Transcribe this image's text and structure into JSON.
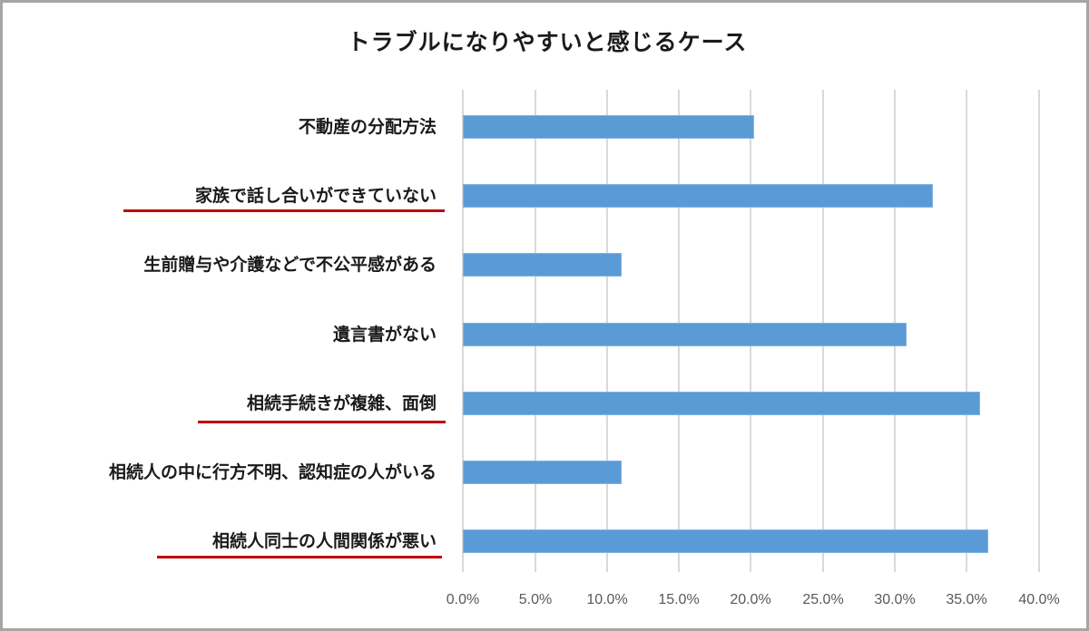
{
  "chart_data": {
    "type": "bar",
    "orientation": "horizontal",
    "title": "トラブルになりやすいと感じるケース",
    "xlabel": "",
    "ylabel": "",
    "xlim": [
      0,
      40
    ],
    "x_ticks": [
      "0.0%",
      "5.0%",
      "10.0%",
      "15.0%",
      "20.0%",
      "25.0%",
      "30.0%",
      "35.0%",
      "40.0%"
    ],
    "grid": "vertical",
    "legend": null,
    "categories": [
      "不動産の分配方法",
      "家族で話し合いができていない",
      "生前贈与や介護などで不公平感がある",
      "遺言書がない",
      "相続手続きが複雑、面倒",
      "相続人の中に行方不明、認知症の人がいる",
      "相続人同士の人間関係が悪い"
    ],
    "values": [
      20.2,
      32.6,
      11.0,
      30.8,
      35.9,
      11.0,
      36.5
    ],
    "unit": "%",
    "highlighted_categories": [
      "家族で話し合いができていない",
      "相続手続きが複雑、面倒",
      "相続人同士の人間関係が悪い"
    ],
    "bar_color": "#5b9bd5",
    "highlight_underline_color": "#c00000"
  },
  "labels": {
    "title": "トラブルになりやすいと感じるケース",
    "cat0": "不動産の分配方法",
    "cat1": "家族で話し合いができていない",
    "cat2": "生前贈与や介護などで不公平感がある",
    "cat3": "遺言書がない",
    "cat4": "相続手続きが複雑、面倒",
    "cat5": "相続人の中に行方不明、認知症の人がいる",
    "cat6": "相続人同士の人間関係が悪い",
    "t0": "0.0%",
    "t1": "5.0%",
    "t2": "10.0%",
    "t3": "15.0%",
    "t4": "20.0%",
    "t5": "25.0%",
    "t6": "30.0%",
    "t7": "35.0%",
    "t8": "40.0%"
  }
}
